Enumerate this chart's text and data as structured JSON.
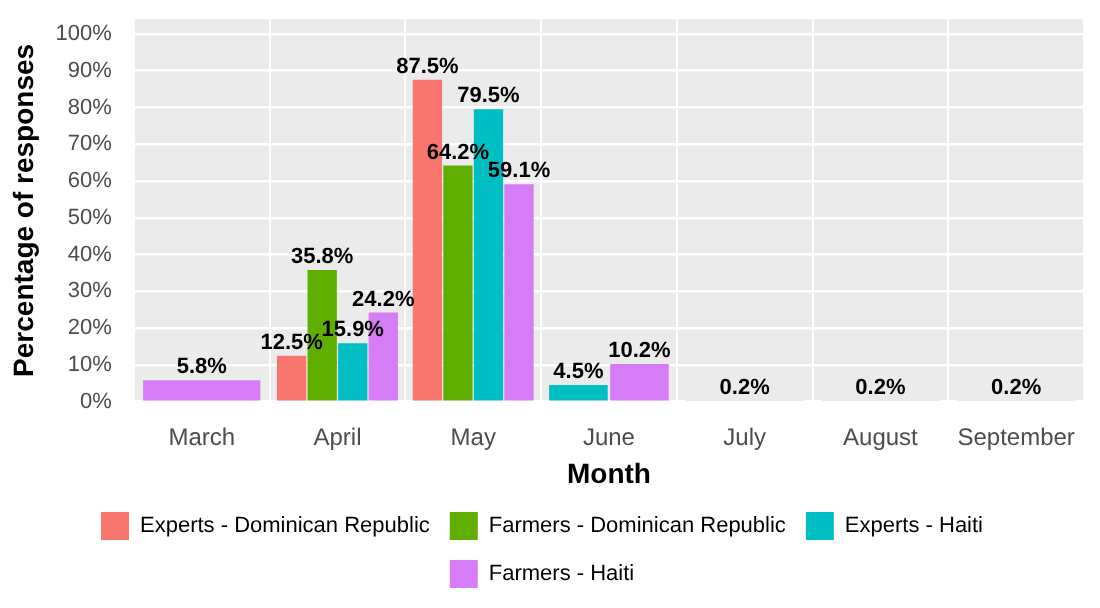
{
  "chart_data": {
    "type": "bar",
    "xlabel": "Month",
    "ylabel": "Percentage of responses",
    "categories": [
      "March",
      "April",
      "May",
      "June",
      "July",
      "August",
      "September"
    ],
    "series": [
      {
        "name": "Experts - Dominican Republic",
        "color": "#f8766d",
        "values": [
          null,
          12.5,
          87.5,
          null,
          null,
          null,
          null
        ],
        "value_labels": [
          null,
          "12.5%",
          "87.5%",
          null,
          null,
          null,
          null
        ]
      },
      {
        "name": "Farmers - Dominican Republic",
        "color": "#5fae00",
        "values": [
          null,
          35.8,
          64.2,
          null,
          null,
          null,
          null
        ],
        "value_labels": [
          null,
          "35.8%",
          "64.2%",
          null,
          null,
          null,
          null
        ]
      },
      {
        "name": "Experts - Haiti",
        "color": "#00bfc4",
        "values": [
          null,
          15.9,
          79.5,
          4.5,
          null,
          null,
          null
        ],
        "value_labels": [
          null,
          "15.9%",
          "79.5%",
          "4.5%",
          null,
          null,
          null
        ]
      },
      {
        "name": "Farmers - Haiti",
        "color": "#d77cf7",
        "values": [
          5.8,
          24.2,
          59.1,
          10.2,
          0.2,
          0.2,
          0.2
        ],
        "value_labels": [
          "5.8%",
          "24.2%",
          "59.1%",
          "10.2%",
          "0.2%",
          "0.2%",
          "0.2%"
        ]
      }
    ],
    "ylim": [
      0,
      104
    ],
    "yticks": [
      {
        "value": 0,
        "label": "0%"
      },
      {
        "value": 10,
        "label": "10%"
      },
      {
        "value": 20,
        "label": "20%"
      },
      {
        "value": 30,
        "label": "30%"
      },
      {
        "value": 40,
        "label": "40%"
      },
      {
        "value": 50,
        "label": "50%"
      },
      {
        "value": 60,
        "label": "60%"
      },
      {
        "value": 70,
        "label": "70%"
      },
      {
        "value": 80,
        "label": "80%"
      },
      {
        "value": 90,
        "label": "90%"
      },
      {
        "value": 100,
        "label": "100%"
      }
    ],
    "grid": true,
    "legend": "bottom"
  }
}
